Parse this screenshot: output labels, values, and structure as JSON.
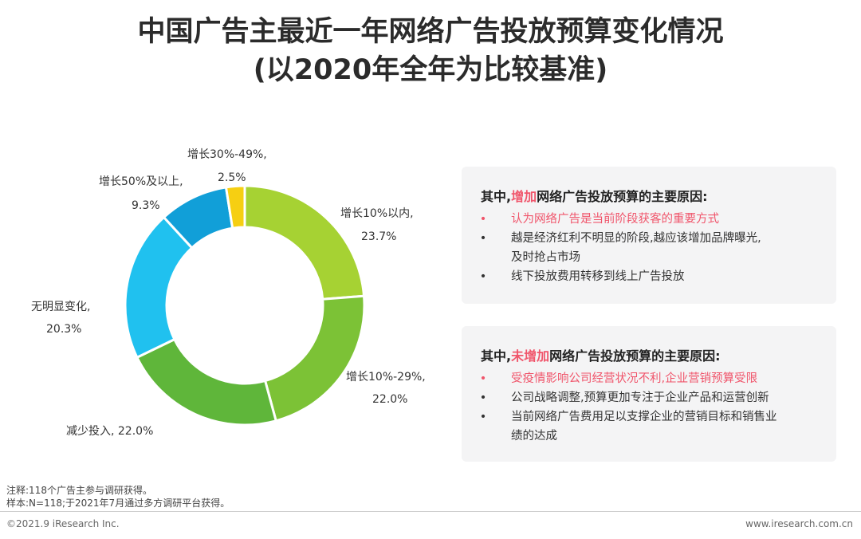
{
  "title": {
    "line1": "中国广告主最近一年网络广告投放预算变化情况",
    "line2": "(以2020年全年为比较基准)"
  },
  "chart_data": {
    "type": "pie",
    "variant": "donut",
    "title": "中国广告主最近一年网络广告投放预算变化情况 (以2020年全年为比较基准)",
    "slices": [
      {
        "name": "增长10%以内,",
        "value": 23.7,
        "label": "23.7%",
        "color": "#a6d233"
      },
      {
        "name": "增长10%-29%,",
        "value": 22.0,
        "label": "22.0%",
        "color": "#7cc236"
      },
      {
        "name": "减少投入,",
        "value": 22.0,
        "label": "减少投入, 22.0%",
        "color": "#5fb63a"
      },
      {
        "name": "无明显变化,",
        "value": 20.3,
        "label": "20.3%",
        "color": "#20c1ef"
      },
      {
        "name": "增长50%及以上,",
        "value": 9.3,
        "label": "9.3%",
        "color": "#119fd8"
      },
      {
        "name": "增长30%-49%,",
        "value": 2.5,
        "label": "2.5%",
        "color": "#f6cf12"
      }
    ]
  },
  "panels": {
    "increase": {
      "prefix": "其中,",
      "highlight": "增加",
      "suffix": "网络广告投放预算的主要原因:",
      "bullet": "•",
      "items": [
        {
          "text": "认为网络广告是当前阶段获客的重要方式"
        },
        {
          "text": "越是经济红利不明显的阶段,越应该增加品牌曝光,"
        },
        {
          "text": "及时抢占市场"
        },
        {
          "text": "线下投放费用转移到线上广告投放"
        }
      ]
    },
    "not_increase": {
      "prefix": "其中,",
      "highlight": "未增加",
      "suffix": "网络广告投放预算的主要原因:",
      "bullet": "•",
      "items": [
        {
          "text": "受疫情影响公司经营状况不利,企业营销预算受限"
        },
        {
          "text": "公司战略调整,预算更加专注于企业产品和运营创新"
        },
        {
          "text": "当前网络广告费用足以支撑企业的营销目标和销售业"
        },
        {
          "text": "绩的达成"
        }
      ]
    }
  },
  "notes": {
    "note1": "注释:118个广告主参与调研获得。",
    "note2": "样本:N=118;于2021年7月通过多方调研平台获得。"
  },
  "footer": {
    "copyright": "©2021.9 iResearch Inc.",
    "website": "www.iresearch.com.cn"
  }
}
